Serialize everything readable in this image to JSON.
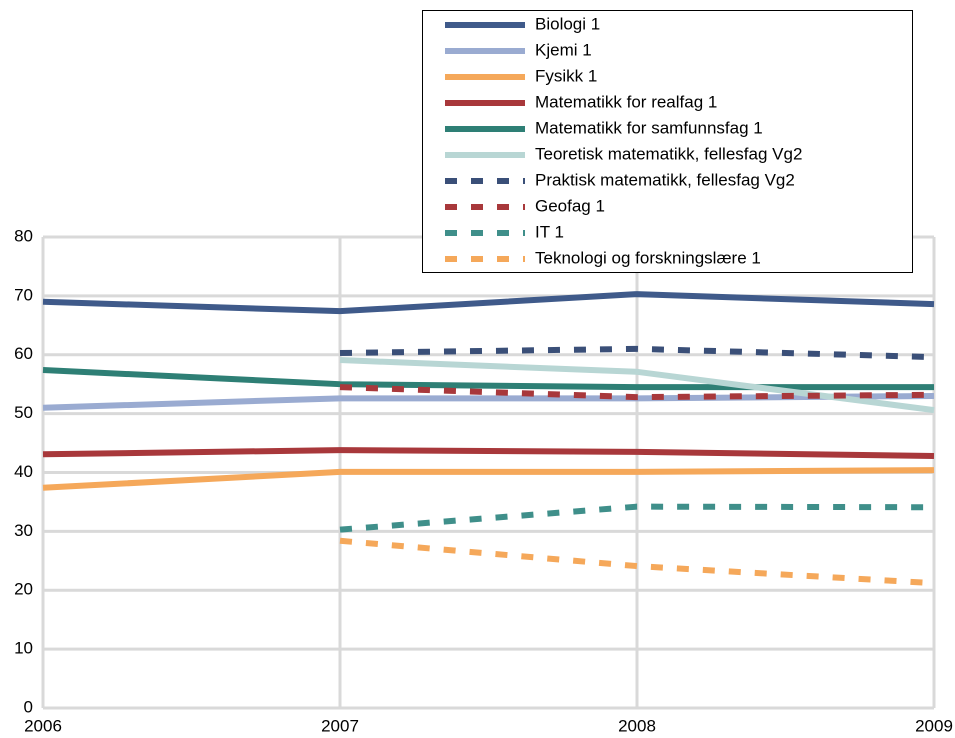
{
  "chart_data": {
    "type": "line",
    "x": [
      2006,
      2007,
      2008,
      2009
    ],
    "xlim": [
      2006,
      2009
    ],
    "xticks": [
      2006,
      2007,
      2008,
      2009
    ],
    "ylim": [
      0,
      80
    ],
    "yticks": [
      0,
      10,
      20,
      30,
      40,
      50,
      60,
      70,
      80
    ],
    "grid": true,
    "legend": "top-right",
    "series": [
      {
        "name": "Biologi 1",
        "color": "#3f5a8a",
        "dashed": false,
        "values": [
          69.0,
          67.4,
          70.3,
          68.6
        ]
      },
      {
        "name": "Kjemi 1",
        "color": "#9aabd1",
        "dashed": false,
        "values": [
          51.0,
          52.6,
          52.6,
          53.0
        ]
      },
      {
        "name": "Fysikk 1",
        "color": "#f5a85a",
        "dashed": false,
        "values": [
          37.4,
          40.1,
          40.1,
          40.4
        ]
      },
      {
        "name": "Matematikk for realfag 1",
        "color": "#a8383b",
        "dashed": false,
        "values": [
          43.1,
          43.8,
          43.5,
          42.8
        ]
      },
      {
        "name": "Matematikk for samfunnsfag 1",
        "color": "#2e7f75",
        "dashed": false,
        "values": [
          57.4,
          55.0,
          54.5,
          54.5
        ]
      },
      {
        "name": "Teoretisk matematikk, fellesfag Vg2",
        "color": "#b8d6d4",
        "dashed": false,
        "values": [
          null,
          59.1,
          57.1,
          50.6
        ]
      },
      {
        "name": "Praktisk matematikk, fellesfag Vg2",
        "color": "#3a4f78",
        "dashed": true,
        "values": [
          null,
          60.3,
          61.0,
          59.6
        ]
      },
      {
        "name": "Geofag 1",
        "color": "#a8383b",
        "dashed": true,
        "values": [
          null,
          54.5,
          52.8,
          53.2
        ]
      },
      {
        "name": "IT 1",
        "color": "#3f8f8a",
        "dashed": true,
        "values": [
          null,
          30.3,
          34.2,
          34.1
        ]
      },
      {
        "name": "Teknologi og forskningslære 1",
        "color": "#f5a85a",
        "dashed": true,
        "values": [
          null,
          28.4,
          24.1,
          21.2
        ]
      }
    ]
  }
}
